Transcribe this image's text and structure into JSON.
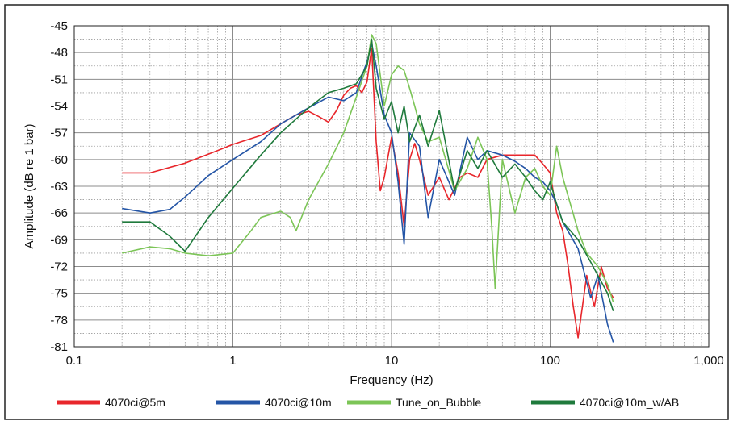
{
  "chart_data": {
    "type": "line",
    "xlabel": "Frequency (Hz)",
    "ylabel": "Amplitude (dB re 1 bar)",
    "x_scale": "log",
    "xlim": [
      0.1,
      1000
    ],
    "ylim": [
      -81,
      -45
    ],
    "x_ticks": [
      0.1,
      1,
      10,
      100,
      1000
    ],
    "x_tick_labels": [
      "0.1",
      "1",
      "10",
      "100",
      "1,000"
    ],
    "y_ticks": [
      -45,
      -48,
      -51,
      -54,
      -57,
      -60,
      -63,
      -66,
      -69,
      -72,
      -75,
      -78,
      -81
    ],
    "y_tick_labels": [
      "-45",
      "-48",
      "-51",
      "-54",
      "-57",
      "-60",
      "-63",
      "-66",
      "-69",
      "-72",
      "-75",
      "-78",
      "-81"
    ],
    "grid": true,
    "legend_position": "bottom",
    "series": [
      {
        "name": "4070ci@5m",
        "color": "#e8262b",
        "x": [
          0.2,
          0.3,
          0.5,
          0.8,
          1.0,
          1.5,
          2.0,
          2.5,
          3.0,
          3.5,
          4.0,
          4.5,
          5.0,
          5.5,
          6.0,
          6.5,
          7.0,
          7.5,
          8.0,
          8.5,
          9.0,
          10,
          11,
          12,
          13,
          14,
          15,
          17,
          20,
          23,
          27,
          30,
          35,
          40,
          50,
          60,
          70,
          80,
          90,
          100,
          110,
          120,
          130,
          140,
          150,
          170,
          190,
          210,
          230,
          250
        ],
        "y": [
          -61.5,
          -61.5,
          -60.4,
          -59.0,
          -58.3,
          -57.3,
          -56.0,
          -55.0,
          -54.6,
          -55.2,
          -55.8,
          -54.5,
          -52.8,
          -52.0,
          -51.7,
          -52.5,
          -51.3,
          -47.5,
          -58.0,
          -63.5,
          -62.0,
          -57.5,
          -61.5,
          -67.5,
          -60.0,
          -58.2,
          -60.0,
          -64.0,
          -62.0,
          -64.5,
          -62.0,
          -61.5,
          -62.0,
          -60.0,
          -59.5,
          -59.5,
          -59.5,
          -59.5,
          -60.5,
          -61.5,
          -66.0,
          -68.0,
          -72.0,
          -76.5,
          -80.0,
          -73.0,
          -76.5,
          -72.0,
          -74.5,
          -75.5
        ]
      },
      {
        "name": "4070ci@10m",
        "color": "#2455a6",
        "x": [
          0.2,
          0.3,
          0.4,
          0.5,
          0.7,
          1.0,
          1.5,
          2.0,
          3.0,
          4.0,
          5.0,
          6.0,
          7.0,
          7.5,
          8.0,
          9.0,
          10,
          11,
          12,
          13,
          15,
          17,
          20,
          25,
          30,
          35,
          40,
          50,
          60,
          70,
          80,
          90,
          100,
          110,
          120,
          150,
          180,
          200,
          230,
          250
        ],
        "y": [
          -65.5,
          -66.0,
          -65.6,
          -64.2,
          -61.8,
          -60.0,
          -58.0,
          -56.0,
          -54.2,
          -53.0,
          -53.4,
          -52.5,
          -49.0,
          -47.0,
          -49.5,
          -55.0,
          -57.0,
          -62.5,
          -69.5,
          -57.0,
          -58.5,
          -66.5,
          -60.0,
          -64.0,
          -57.5,
          -60.0,
          -59.0,
          -59.5,
          -60.2,
          -61.0,
          -62.0,
          -62.5,
          -63.5,
          -65.0,
          -67.0,
          -70.0,
          -75.5,
          -73.0,
          -78.5,
          -80.5
        ]
      },
      {
        "name": "Tune_on_Bubble",
        "color": "#7cc557",
        "x": [
          0.2,
          0.3,
          0.4,
          0.5,
          0.7,
          1.0,
          1.3,
          1.5,
          2.0,
          2.3,
          2.5,
          3.0,
          4.0,
          5.0,
          6.0,
          7.0,
          7.5,
          8.0,
          9.0,
          10,
          11,
          12,
          13,
          14,
          15,
          17,
          20,
          25,
          30,
          35,
          40,
          43,
          45,
          50,
          60,
          70,
          80,
          90,
          100,
          110,
          120,
          150,
          170,
          200,
          230,
          250
        ],
        "y": [
          -70.5,
          -69.8,
          -70.0,
          -70.5,
          -70.8,
          -70.5,
          -68.0,
          -66.5,
          -65.8,
          -66.5,
          -68.0,
          -64.5,
          -60.5,
          -57.0,
          -53.0,
          -49.5,
          -46.0,
          -47.0,
          -54.0,
          -50.5,
          -49.5,
          -50.0,
          -52.0,
          -54.0,
          -56.0,
          -58.0,
          -57.5,
          -63.5,
          -61.0,
          -57.5,
          -60.0,
          -68.0,
          -74.5,
          -60.0,
          -66.0,
          -62.0,
          -61.0,
          -63.0,
          -64.0,
          -58.5,
          -62.0,
          -68.0,
          -70.5,
          -72.0,
          -74.0,
          -76.0
        ]
      },
      {
        "name": "4070ci@10m_w/AB",
        "color": "#1f7a3c",
        "x": [
          0.2,
          0.3,
          0.4,
          0.5,
          0.7,
          1.0,
          1.5,
          2.0,
          3.0,
          4.0,
          5.0,
          6.0,
          7.0,
          7.5,
          8.0,
          9.0,
          10,
          11,
          12,
          13,
          15,
          17,
          20,
          25,
          30,
          35,
          40,
          50,
          60,
          70,
          80,
          90,
          100,
          110,
          120,
          150,
          180,
          200,
          230,
          250
        ],
        "y": [
          -67.0,
          -67.0,
          -68.6,
          -70.3,
          -66.5,
          -63.2,
          -59.5,
          -57.0,
          -54.2,
          -52.5,
          -52.0,
          -51.5,
          -49.5,
          -46.5,
          -52.0,
          -55.5,
          -53.5,
          -57.0,
          -54.0,
          -58.0,
          -55.0,
          -58.5,
          -54.5,
          -63.5,
          -59.0,
          -61.0,
          -59.0,
          -62.0,
          -60.5,
          -62.0,
          -63.5,
          -64.5,
          -62.5,
          -65.0,
          -67.0,
          -69.0,
          -71.5,
          -73.0,
          -75.0,
          -77.0
        ]
      }
    ]
  }
}
